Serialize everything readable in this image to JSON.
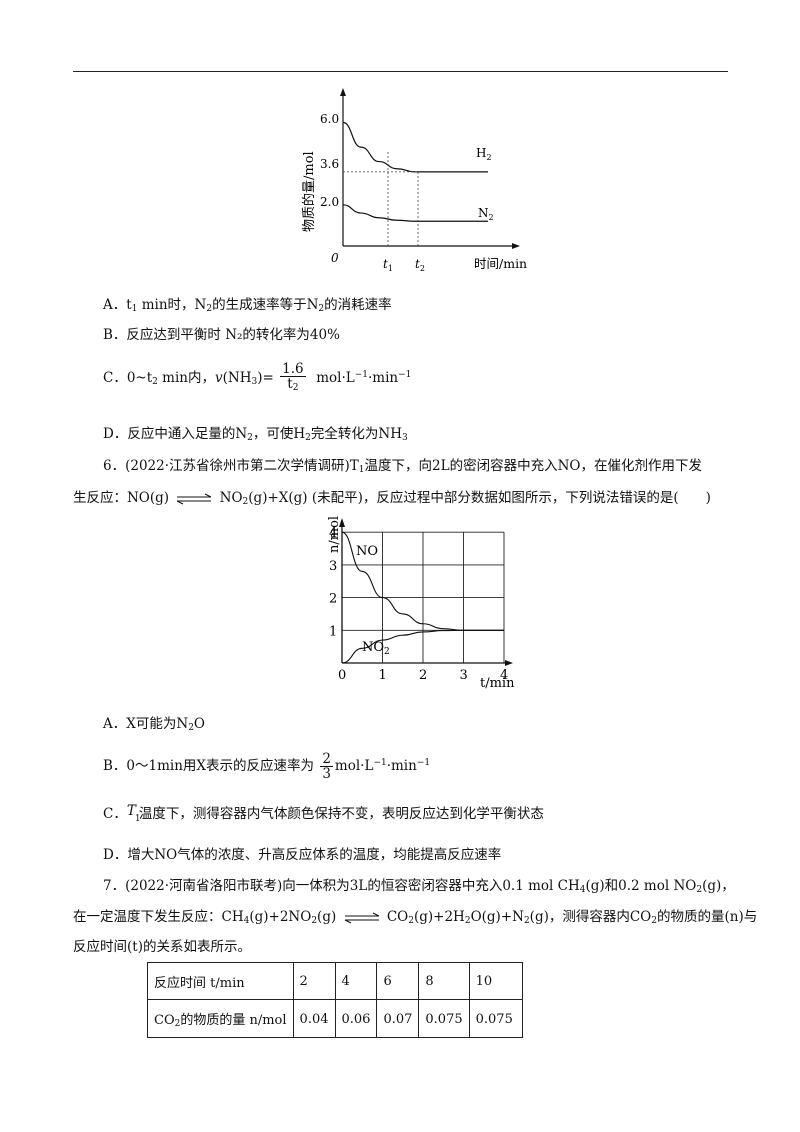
{
  "fig1": {
    "y_ticks": [
      "6.0",
      "3.6",
      "2.0"
    ],
    "y_label": "物质的量/mol",
    "x_label": "时间/min",
    "origin": "0",
    "t1": "t",
    "t1_sub": "1",
    "t2": "t",
    "t2_sub": "2",
    "curve_labels": {
      "h2": "H",
      "h2_sub": "2",
      "n2": "N",
      "n2_sub": "2"
    }
  },
  "q5_options": {
    "A": {
      "pre": "A．t",
      "sub1": "1",
      "mid1": " min时，N",
      "sub2": "2",
      "mid2": "的生成速率等于N",
      "sub3": "2",
      "post": "的消耗速率"
    },
    "B": "B．反应达到平衡时 N₂的转化率为40%",
    "C": {
      "pre": "C．0~t",
      "sub1": "2",
      "mid": " min内，",
      "v": "v",
      "nh3": "(NH",
      "sub2": "3",
      "eq": ")=",
      "num": "1.6",
      "den": "t",
      "den_sub": "2",
      "unit_pre": "mol·L",
      "unit_sup1": "−1",
      "unit_mid": "·min",
      "unit_sup2": "−1"
    },
    "D": {
      "pre": "D．反应中通入足量的N",
      "sub1": "2",
      "mid": "，可使H",
      "sub2": "2",
      "post": "完全转化为NH",
      "sub3": "3"
    }
  },
  "q6": {
    "line1_pre": "6．(2022·江苏省徐州市第二次学情调研)T",
    "line1_sub": "1",
    "line1_post": "温度下，向2L的密闭容器中充入NO，在催化剂作用下发",
    "line2_pre": "生反应：NO(g)",
    "line2_post_a": "NO",
    "line2_sub": "2",
    "line2_post_b": "(g)+X(g) (未配平)，反应过程中部分数据如图所示，下列说法错误的是(　　)"
  },
  "fig2": {
    "y_label": "n/mol",
    "x_label": "t/min",
    "x_ticks": [
      "0",
      "1",
      "2",
      "3",
      "4"
    ],
    "y_ticks": [
      "1",
      "2",
      "3",
      "4"
    ],
    "curve_labels": {
      "no": "NO",
      "no2": "NO",
      "no2_sub": "2"
    }
  },
  "chart_data": [
    {
      "type": "line",
      "xlabel": "时间/min",
      "ylabel": "物质的量/mol",
      "series": [
        {
          "name": "H2",
          "x": [
            0,
            0.5,
            1,
            1.5,
            2,
            3,
            4
          ],
          "y": [
            6.0,
            4.8,
            4.1,
            3.75,
            3.6,
            3.6,
            3.6
          ]
        },
        {
          "name": "N2",
          "x": [
            0,
            0.5,
            1,
            1.5,
            2,
            3,
            4
          ],
          "y": [
            2.0,
            1.6,
            1.37,
            1.25,
            1.2,
            1.2,
            1.2
          ]
        }
      ]
    },
    {
      "type": "line",
      "xlabel": "t/min",
      "ylabel": "n/mol",
      "xlim": [
        0,
        4
      ],
      "ylim": [
        0,
        4
      ],
      "grid": true,
      "series": [
        {
          "name": "NO",
          "x": [
            0,
            0.5,
            1,
            1.5,
            2,
            2.5,
            3,
            3.5,
            4
          ],
          "y": [
            4,
            2.8,
            2.0,
            1.5,
            1.2,
            1.05,
            1.0,
            1.0,
            1.0
          ]
        },
        {
          "name": "NO2",
          "x": [
            0,
            0.5,
            1,
            1.5,
            2,
            2.5,
            3,
            3.5,
            4
          ],
          "y": [
            0,
            0.45,
            0.7,
            0.85,
            0.95,
            0.99,
            1.0,
            1.0,
            1.0
          ]
        }
      ]
    }
  ],
  "q6_options": {
    "A": {
      "pre": "A．X可能为N",
      "sub": "2",
      "post": "O"
    },
    "B": {
      "pre": "B．0～1min用X表示的反应速率为",
      "num": "2",
      "den": "3",
      "unit_pre": "mol·L",
      "sup1": "−1",
      "unit_mid": "·min",
      "sup2": "−1"
    },
    "C": {
      "pre": "C．",
      "t": "T",
      "t_sub": "1",
      "post": "温度下，测得容器内气体颜色保持不变，表明反应达到化学平衡状态"
    },
    "D": "D．增大NO气体的浓度、升高反应体系的温度，均能提高反应速率"
  },
  "q7": {
    "line1": {
      "pre": "7．(2022·河南省洛阳市联考)向一体积为3L的恒容密闭容器中充入0.1 mol CH",
      "s1": "4",
      "m1": "(g)和0.2 mol NO",
      "s2": "2",
      "post": "(g)，"
    },
    "line2": {
      "pre": "在一定温度下发生反应：CH",
      "s1": "4",
      "m1": "(g)+2NO",
      "s2": "2",
      "m2": "(g)",
      "m3": "CO",
      "s3": "2",
      "m4": "(g)+2H",
      "s4": "2",
      "m5": "O(g)+N",
      "s5": "2",
      "m6": "(g)，测得容器内CO",
      "s6": "2",
      "post": "的物质的量(n)与"
    },
    "line3": "反应时间(t)的关系如表所示。",
    "table": {
      "row1_label": "反应时间 t/min",
      "row1_values": [
        "2",
        "4",
        "6",
        "8",
        "10"
      ],
      "row2_label_pre": "CO",
      "row2_label_sub": "2",
      "row2_label_post": "的物质的量 n/mol",
      "row2_values": [
        "0.04",
        "0.06",
        "0.07",
        "0.075",
        "0.075"
      ]
    }
  }
}
